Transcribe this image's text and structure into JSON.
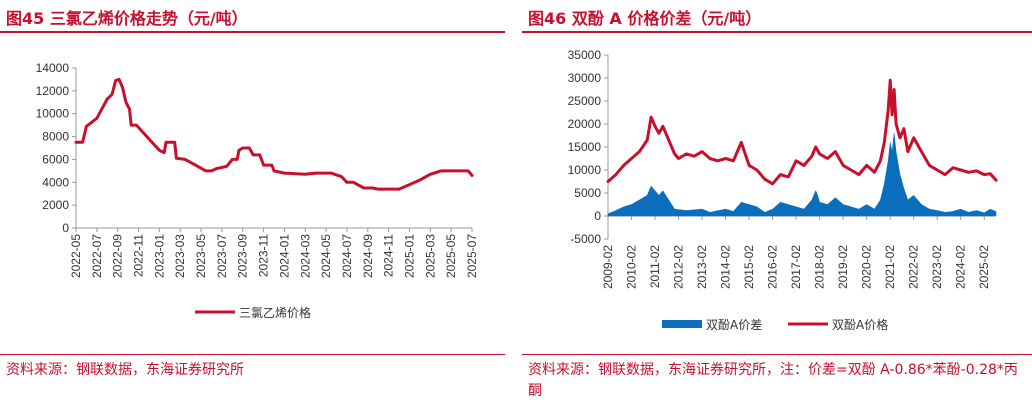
{
  "left": {
    "title": "图45  三氯乙烯价格走势（元/吨）",
    "source": "资料来源：钢联数据，东海证券研究所",
    "chart_data": {
      "type": "line",
      "title": "图45  三氯乙烯价格走势（元/吨）",
      "ylim": [
        0,
        14000
      ],
      "yticks": [
        0,
        2000,
        4000,
        6000,
        8000,
        10000,
        12000,
        14000
      ],
      "xlim": [
        "2022-05",
        "2025-07"
      ],
      "xticks": [
        "2022-05",
        "2022-07",
        "2022-09",
        "2022-11",
        "2023-01",
        "2023-03",
        "2023-05",
        "2023-07",
        "2023-09",
        "2023-11",
        "2024-01",
        "2024-03",
        "2024-05",
        "2024-07",
        "2024-09",
        "2024-11",
        "2025-01",
        "2025-03",
        "2025-05",
        "2025-07"
      ],
      "legend": "bottom",
      "color": "#c8102e",
      "series": [
        {
          "name": "三氯乙烯价格",
          "points": [
            [
              "2022-05",
              7500
            ],
            [
              "2022-05-20",
              7500
            ],
            [
              "2022-06",
              8900
            ],
            [
              "2022-07",
              9600
            ],
            [
              "2022-08",
              11300
            ],
            [
              "2022-08-15",
              11700
            ],
            [
              "2022-08-25",
              12900
            ],
            [
              "2022-09-05",
              13000
            ],
            [
              "2022-09-15",
              12300
            ],
            [
              "2022-09-25",
              11000
            ],
            [
              "2022-10-05",
              10400
            ],
            [
              "2022-10-10",
              9000
            ],
            [
              "2022-10-25",
              9000
            ],
            [
              "2022-12",
              7800
            ],
            [
              "2023-01",
              6800
            ],
            [
              "2023-01-15",
              6600
            ],
            [
              "2023-01-20",
              7500
            ],
            [
              "2023-02-15",
              7500
            ],
            [
              "2023-02-20",
              6100
            ],
            [
              "2023-03-15",
              6000
            ],
            [
              "2023-04-15",
              5500
            ],
            [
              "2023-05-15",
              5000
            ],
            [
              "2023-06",
              5000
            ],
            [
              "2023-06-15",
              5200
            ],
            [
              "2023-07-15",
              5400
            ],
            [
              "2023-08",
              6000
            ],
            [
              "2023-08-15",
              6000
            ],
            [
              "2023-08-20",
              6800
            ],
            [
              "2023-09",
              7000
            ],
            [
              "2023-09-20",
              7000
            ],
            [
              "2023-10",
              6400
            ],
            [
              "2023-10-20",
              6400
            ],
            [
              "2023-11",
              5500
            ],
            [
              "2023-11-25",
              5500
            ],
            [
              "2023-12",
              5000
            ],
            [
              "2024-01",
              4800
            ],
            [
              "2024-03",
              4700
            ],
            [
              "2024-04",
              4800
            ],
            [
              "2024-05-15",
              4800
            ],
            [
              "2024-06-15",
              4500
            ],
            [
              "2024-07",
              4000
            ],
            [
              "2024-07-20",
              4000
            ],
            [
              "2024-08",
              3800
            ],
            [
              "2024-08-20",
              3500
            ],
            [
              "2024-09-15",
              3500
            ],
            [
              "2024-10",
              3400
            ],
            [
              "2024-11",
              3400
            ],
            [
              "2024-12",
              3400
            ],
            [
              "2025-01",
              3800
            ],
            [
              "2025-02",
              4200
            ],
            [
              "2025-03",
              4700
            ],
            [
              "2025-04",
              5000
            ],
            [
              "2025-06",
              5000
            ],
            [
              "2025-06-20",
              5000
            ],
            [
              "2025-07",
              4600
            ]
          ]
        }
      ]
    }
  },
  "right": {
    "title": "图46  双酚 A 价格价差（元/吨）",
    "source": "资料来源：钢联数据，东海证券研究所，注：价差=双酚 A-0.86*苯酚-0.28*丙酮",
    "chart_data": {
      "type": "line",
      "title": "图46  双酚 A 价格价差（元/吨）",
      "ylim": [
        -5000,
        35000
      ],
      "yticks": [
        -5000,
        0,
        5000,
        10000,
        15000,
        20000,
        25000,
        30000,
        35000
      ],
      "xlim": [
        "2009-02",
        "2025-08"
      ],
      "xticks": [
        "2009-02",
        "2010-02",
        "2011-02",
        "2012-02",
        "2013-02",
        "2014-02",
        "2015-02",
        "2016-02",
        "2017-02",
        "2018-02",
        "2019-02",
        "2020-02",
        "2021-02",
        "2022-02",
        "2023-02",
        "2024-02",
        "2025-02"
      ],
      "legend": "bottom",
      "colors": {
        "price": "#c8102e",
        "spread": "#0a6ebd"
      },
      "series": [
        {
          "name": "双酚A价差",
          "type": "area",
          "points": [
            [
              "2009-02",
              500
            ],
            [
              "2009-06",
              1200
            ],
            [
              "2009-10",
              2000
            ],
            [
              "2010-02",
              2500
            ],
            [
              "2010-06",
              3500
            ],
            [
              "2010-10",
              4500
            ],
            [
              "2010-12",
              6500
            ],
            [
              "2011-02",
              5500
            ],
            [
              "2011-04",
              4500
            ],
            [
              "2011-06",
              5500
            ],
            [
              "2011-09",
              3500
            ],
            [
              "2011-12",
              1500
            ],
            [
              "2012-06",
              1200
            ],
            [
              "2013-02",
              1500
            ],
            [
              "2013-06",
              800
            ],
            [
              "2014-02",
              1500
            ],
            [
              "2014-06",
              1000
            ],
            [
              "2014-10",
              3000
            ],
            [
              "2015-02",
              2500
            ],
            [
              "2015-06",
              2000
            ],
            [
              "2015-10",
              800
            ],
            [
              "2016-02",
              1500
            ],
            [
              "2016-06",
              3000
            ],
            [
              "2016-10",
              2500
            ],
            [
              "2017-02",
              2000
            ],
            [
              "2017-06",
              1500
            ],
            [
              "2017-10",
              3500
            ],
            [
              "2017-12",
              5500
            ],
            [
              "2018-01",
              4500
            ],
            [
              "2018-02",
              3000
            ],
            [
              "2018-06",
              2500
            ],
            [
              "2018-10",
              4000
            ],
            [
              "2019-02",
              2500
            ],
            [
              "2019-06",
              2000
            ],
            [
              "2019-10",
              1500
            ],
            [
              "2020-02",
              2500
            ],
            [
              "2020-06",
              1500
            ],
            [
              "2020-09",
              3500
            ],
            [
              "2020-11",
              7000
            ],
            [
              "2021-01",
              12000
            ],
            [
              "2021-02",
              16000
            ],
            [
              "2021-03",
              14000
            ],
            [
              "2021-04",
              18000
            ],
            [
              "2021-05",
              14000
            ],
            [
              "2021-07",
              9000
            ],
            [
              "2021-09",
              6000
            ],
            [
              "2021-11",
              3500
            ],
            [
              "2022-02",
              4500
            ],
            [
              "2022-06",
              2500
            ],
            [
              "2022-10",
              1500
            ],
            [
              "2023-02",
              1200
            ],
            [
              "2023-06",
              800
            ],
            [
              "2023-10",
              1000
            ],
            [
              "2024-02",
              1500
            ],
            [
              "2024-06",
              800
            ],
            [
              "2024-10",
              1200
            ],
            [
              "2025-02",
              700
            ],
            [
              "2025-05",
              1500
            ],
            [
              "2025-08",
              1000
            ]
          ]
        },
        {
          "name": "双酚A价格",
          "type": "line",
          "points": [
            [
              "2009-02",
              7500
            ],
            [
              "2009-06",
              9000
            ],
            [
              "2009-10",
              11000
            ],
            [
              "2010-02",
              12500
            ],
            [
              "2010-06",
              14000
            ],
            [
              "2010-10",
              16500
            ],
            [
              "2010-12",
              21500
            ],
            [
              "2011-02",
              19500
            ],
            [
              "2011-04",
              18000
            ],
            [
              "2011-06",
              19500
            ],
            [
              "2011-09",
              16500
            ],
            [
              "2011-12",
              13500
            ],
            [
              "2012-02",
              12500
            ],
            [
              "2012-06",
              13500
            ],
            [
              "2012-10",
              13000
            ],
            [
              "2013-02",
              14000
            ],
            [
              "2013-06",
              12500
            ],
            [
              "2013-10",
              12000
            ],
            [
              "2014-02",
              12500
            ],
            [
              "2014-06",
              12000
            ],
            [
              "2014-10",
              16000
            ],
            [
              "2015-02",
              11000
            ],
            [
              "2015-06",
              10000
            ],
            [
              "2015-10",
              8000
            ],
            [
              "2016-02",
              7000
            ],
            [
              "2016-06",
              9000
            ],
            [
              "2016-10",
              8500
            ],
            [
              "2017-02",
              12000
            ],
            [
              "2017-06",
              11000
            ],
            [
              "2017-10",
              13000
            ],
            [
              "2017-12",
              15000
            ],
            [
              "2018-02",
              13500
            ],
            [
              "2018-06",
              12500
            ],
            [
              "2018-10",
              14000
            ],
            [
              "2019-02",
              11000
            ],
            [
              "2019-06",
              10000
            ],
            [
              "2019-10",
              9000
            ],
            [
              "2020-02",
              11000
            ],
            [
              "2020-06",
              9500
            ],
            [
              "2020-09",
              12000
            ],
            [
              "2020-11",
              16000
            ],
            [
              "2021-01",
              23000
            ],
            [
              "2021-02",
              29500
            ],
            [
              "2021-03",
              22000
            ],
            [
              "2021-04",
              27500
            ],
            [
              "2021-05",
              20000
            ],
            [
              "2021-07",
              17000
            ],
            [
              "2021-09",
              19000
            ],
            [
              "2021-11",
              14000
            ],
            [
              "2022-02",
              17000
            ],
            [
              "2022-06",
              14000
            ],
            [
              "2022-10",
              11000
            ],
            [
              "2023-02",
              10000
            ],
            [
              "2023-06",
              9000
            ],
            [
              "2023-10",
              10500
            ],
            [
              "2024-02",
              10000
            ],
            [
              "2024-06",
              9500
            ],
            [
              "2024-10",
              9800
            ],
            [
              "2025-02",
              9000
            ],
            [
              "2025-05",
              9200
            ],
            [
              "2025-08",
              7800
            ]
          ]
        }
      ]
    }
  }
}
